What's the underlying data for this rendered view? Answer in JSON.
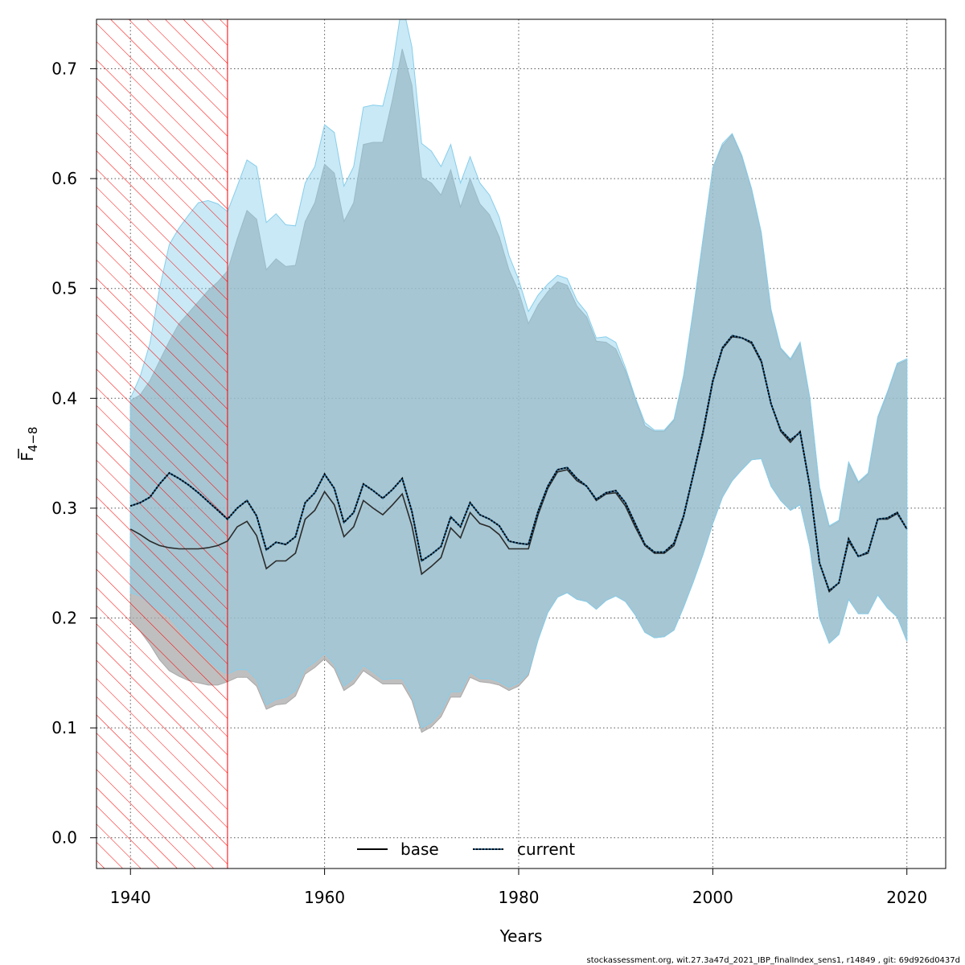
{
  "chart_data": {
    "type": "line",
    "xlabel": "Years",
    "ylabel_main": "F",
    "ylabel_sub": "4−8",
    "xlim": [
      1936.5,
      2024
    ],
    "ylim": [
      -0.028,
      0.745
    ],
    "x_ticks": [
      1940,
      1960,
      1980,
      2000,
      2020
    ],
    "x_tick_labels": [
      "1940",
      "1960",
      "1980",
      "2000",
      "2020"
    ],
    "y_ticks": [
      0.0,
      0.1,
      0.2,
      0.3,
      0.4,
      0.5,
      0.6,
      0.7
    ],
    "y_tick_labels": [
      "0.0",
      "0.1",
      "0.2",
      "0.3",
      "0.4",
      "0.5",
      "0.6",
      "0.7"
    ],
    "grid": true,
    "legend_position": "bottom-center",
    "hatched_region": {
      "x_from": 1936.5,
      "x_to": 1950,
      "color": "#ff0000"
    },
    "footer": "stockassessment.org, wit.27.3a47d_2021_IBP_finalIndex_sens1, r14849 , git: 69d926d0437d",
    "series": [
      {
        "name": "base",
        "style": "solid",
        "line_color": "#000000",
        "band_color": "#a9a9a9",
        "x": [
          1940,
          1941,
          1942,
          1943,
          1944,
          1945,
          1946,
          1947,
          1948,
          1949,
          1950,
          1951,
          1952,
          1953,
          1954,
          1955,
          1956,
          1957,
          1958,
          1959,
          1960,
          1961,
          1962,
          1963,
          1964,
          1965,
          1966,
          1967,
          1968,
          1969,
          1970,
          1971,
          1972,
          1973,
          1974,
          1975,
          1976,
          1977,
          1978,
          1979,
          1980,
          1981,
          1982,
          1983,
          1984,
          1985,
          1986,
          1987,
          1988,
          1989,
          1990,
          1991,
          1992,
          1993,
          1994,
          1995,
          1996,
          1997,
          1998,
          1999,
          2000,
          2001,
          2002,
          2003,
          2004,
          2005,
          2006,
          2007,
          2008,
          2009,
          2010,
          2011,
          2012,
          2013,
          2014,
          2015,
          2016,
          2017,
          2018,
          2019,
          2020
        ],
        "values": [
          0.281,
          0.276,
          0.27,
          0.266,
          0.264,
          0.263,
          0.263,
          0.263,
          0.264,
          0.266,
          0.27,
          0.283,
          0.288,
          0.275,
          0.245,
          0.252,
          0.252,
          0.259,
          0.29,
          0.298,
          0.315,
          0.303,
          0.274,
          0.283,
          0.307,
          0.3,
          0.294,
          0.303,
          0.313,
          0.284,
          0.24,
          0.247,
          0.255,
          0.282,
          0.273,
          0.296,
          0.286,
          0.283,
          0.276,
          0.263,
          0.263,
          0.263,
          0.294,
          0.318,
          0.333,
          0.335,
          0.325,
          0.32,
          0.307,
          0.313,
          0.314,
          0.302,
          0.283,
          0.266,
          0.259,
          0.259,
          0.266,
          0.292,
          0.33,
          0.368,
          0.415,
          0.445,
          0.456,
          0.455,
          0.45,
          0.433,
          0.395,
          0.37,
          0.36,
          0.37,
          0.32,
          0.25,
          0.224,
          0.232,
          0.27,
          0.256,
          0.259,
          0.29,
          0.29,
          0.295,
          0.281
        ],
        "lower": [
          0.197,
          0.188,
          0.176,
          0.162,
          0.152,
          0.147,
          0.143,
          0.141,
          0.139,
          0.139,
          0.142,
          0.146,
          0.146,
          0.138,
          0.117,
          0.121,
          0.122,
          0.129,
          0.149,
          0.155,
          0.163,
          0.154,
          0.134,
          0.14,
          0.152,
          0.146,
          0.14,
          0.14,
          0.14,
          0.125,
          0.096,
          0.101,
          0.11,
          0.128,
          0.128,
          0.146,
          0.142,
          0.141,
          0.139,
          0.134,
          0.138,
          0.148,
          0.18,
          0.205,
          0.219,
          0.223,
          0.217,
          0.215,
          0.208,
          0.216,
          0.22,
          0.215,
          0.203,
          0.187,
          0.182,
          0.183,
          0.189,
          0.21,
          0.233,
          0.258,
          0.286,
          0.31,
          0.325,
          0.335,
          0.344,
          0.345,
          0.32,
          0.307,
          0.298,
          0.303,
          0.265,
          0.2,
          0.177,
          0.185,
          0.217,
          0.204,
          0.204,
          0.221,
          0.209,
          0.201,
          0.179
        ],
        "upper": [
          0.398,
          0.403,
          0.416,
          0.434,
          0.452,
          0.468,
          0.478,
          0.488,
          0.498,
          0.506,
          0.516,
          0.545,
          0.571,
          0.563,
          0.517,
          0.527,
          0.52,
          0.521,
          0.561,
          0.578,
          0.613,
          0.605,
          0.561,
          0.578,
          0.631,
          0.633,
          0.633,
          0.672,
          0.718,
          0.685,
          0.601,
          0.596,
          0.585,
          0.608,
          0.574,
          0.6,
          0.577,
          0.567,
          0.547,
          0.517,
          0.497,
          0.468,
          0.485,
          0.497,
          0.506,
          0.503,
          0.484,
          0.474,
          0.452,
          0.451,
          0.445,
          0.425,
          0.4,
          0.375,
          0.37,
          0.37,
          0.38,
          0.42,
          0.48,
          0.545,
          0.61,
          0.63,
          0.64,
          0.62,
          0.59,
          0.55,
          0.48,
          0.445,
          0.435,
          0.45,
          0.4,
          0.318,
          0.283,
          0.288,
          0.341,
          0.323,
          0.331,
          0.382,
          0.405,
          0.431,
          0.435
        ]
      },
      {
        "name": "current",
        "style": "dotted",
        "line_color": "#1f5f8b",
        "band_color": "#87ceeb",
        "x": [
          1940,
          1941,
          1942,
          1943,
          1944,
          1945,
          1946,
          1947,
          1948,
          1949,
          1950,
          1951,
          1952,
          1953,
          1954,
          1955,
          1956,
          1957,
          1958,
          1959,
          1960,
          1961,
          1962,
          1963,
          1964,
          1965,
          1966,
          1967,
          1968,
          1969,
          1970,
          1971,
          1972,
          1973,
          1974,
          1975,
          1976,
          1977,
          1978,
          1979,
          1980,
          1981,
          1982,
          1983,
          1984,
          1985,
          1986,
          1987,
          1988,
          1989,
          1990,
          1991,
          1992,
          1993,
          1994,
          1995,
          1996,
          1997,
          1998,
          1999,
          2000,
          2001,
          2002,
          2003,
          2004,
          2005,
          2006,
          2007,
          2008,
          2009,
          2010,
          2011,
          2012,
          2013,
          2014,
          2015,
          2016,
          2017,
          2018,
          2019,
          2020
        ],
        "values": [
          0.302,
          0.305,
          0.31,
          0.322,
          0.332,
          0.327,
          0.321,
          0.314,
          0.306,
          0.298,
          0.29,
          0.3,
          0.307,
          0.293,
          0.262,
          0.269,
          0.267,
          0.274,
          0.305,
          0.314,
          0.331,
          0.318,
          0.287,
          0.296,
          0.322,
          0.316,
          0.309,
          0.317,
          0.327,
          0.297,
          0.252,
          0.258,
          0.265,
          0.292,
          0.283,
          0.305,
          0.294,
          0.29,
          0.284,
          0.27,
          0.268,
          0.267,
          0.297,
          0.32,
          0.335,
          0.337,
          0.327,
          0.32,
          0.308,
          0.314,
          0.316,
          0.305,
          0.286,
          0.267,
          0.26,
          0.26,
          0.268,
          0.293,
          0.331,
          0.37,
          0.416,
          0.446,
          0.457,
          0.455,
          0.451,
          0.434,
          0.395,
          0.371,
          0.362,
          0.369,
          0.32,
          0.25,
          0.225,
          0.232,
          0.272,
          0.256,
          0.26,
          0.29,
          0.291,
          0.296,
          0.281
        ],
        "lower": [
          0.223,
          0.22,
          0.213,
          0.207,
          0.201,
          0.19,
          0.18,
          0.171,
          0.162,
          0.154,
          0.149,
          0.153,
          0.153,
          0.144,
          0.121,
          0.126,
          0.128,
          0.134,
          0.154,
          0.16,
          0.168,
          0.158,
          0.138,
          0.145,
          0.157,
          0.151,
          0.144,
          0.145,
          0.145,
          0.13,
          0.1,
          0.105,
          0.115,
          0.133,
          0.133,
          0.151,
          0.145,
          0.145,
          0.142,
          0.137,
          0.141,
          0.15,
          0.18,
          0.205,
          0.219,
          0.223,
          0.217,
          0.215,
          0.208,
          0.216,
          0.22,
          0.215,
          0.203,
          0.187,
          0.182,
          0.183,
          0.189,
          0.21,
          0.233,
          0.258,
          0.286,
          0.31,
          0.325,
          0.335,
          0.344,
          0.345,
          0.32,
          0.307,
          0.298,
          0.303,
          0.265,
          0.2,
          0.177,
          0.185,
          0.217,
          0.204,
          0.204,
          0.221,
          0.209,
          0.201,
          0.179
        ],
        "upper": [
          0.4,
          0.42,
          0.45,
          0.5,
          0.54,
          0.555,
          0.567,
          0.578,
          0.58,
          0.577,
          0.57,
          0.593,
          0.617,
          0.611,
          0.56,
          0.568,
          0.558,
          0.557,
          0.596,
          0.611,
          0.649,
          0.642,
          0.593,
          0.611,
          0.665,
          0.667,
          0.666,
          0.702,
          0.76,
          0.72,
          0.632,
          0.625,
          0.611,
          0.631,
          0.596,
          0.62,
          0.596,
          0.585,
          0.565,
          0.53,
          0.508,
          0.479,
          0.494,
          0.504,
          0.512,
          0.509,
          0.489,
          0.478,
          0.455,
          0.456,
          0.451,
          0.428,
          0.401,
          0.378,
          0.371,
          0.371,
          0.381,
          0.421,
          0.481,
          0.546,
          0.61,
          0.632,
          0.641,
          0.621,
          0.591,
          0.551,
          0.481,
          0.446,
          0.436,
          0.451,
          0.401,
          0.319,
          0.284,
          0.289,
          0.342,
          0.324,
          0.332,
          0.383,
          0.406,
          0.432,
          0.436
        ]
      }
    ]
  }
}
